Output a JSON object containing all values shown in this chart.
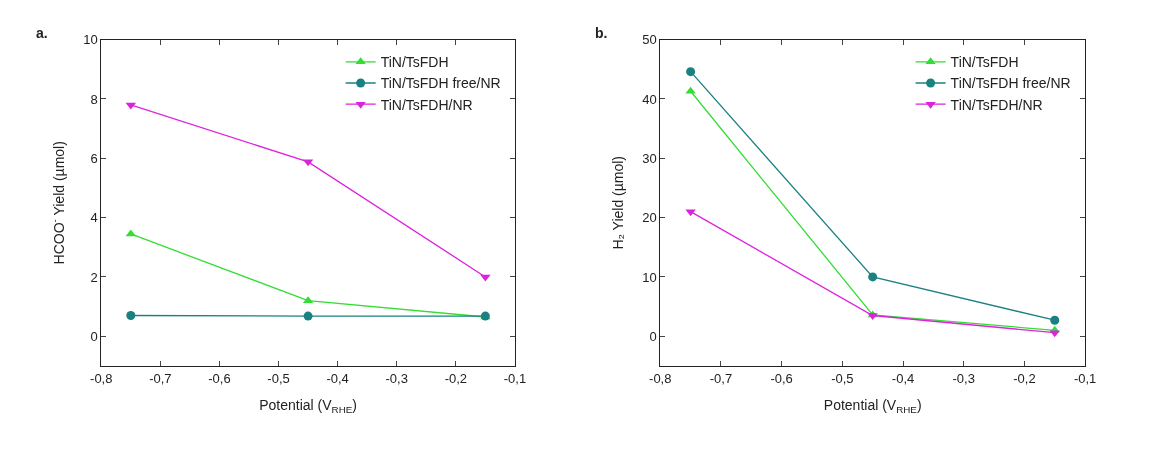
{
  "chart_data": [
    {
      "type": "line",
      "title": "a.",
      "xlabel": "Potential (V$_{RHE}$)",
      "ylabel": "HCOO$^{-}$ Yield (µmol)",
      "x": [
        -0.75,
        -0.45,
        -0.15
      ],
      "series": [
        {
          "name": "TiN/TsFDH",
          "color": "#33dd33",
          "marker": "triangle-up",
          "values": [
            3.45,
            1.2,
            0.65
          ]
        },
        {
          "name": "TiN/TsFDH free/NR",
          "color": "#1a8080",
          "marker": "circle",
          "values": [
            0.7,
            0.68,
            0.68
          ]
        },
        {
          "name": "TiN/TsFDH/NR",
          "color": "#dd22dd",
          "marker": "triangle-down",
          "values": [
            7.8,
            5.88,
            2.0
          ]
        }
      ],
      "xlim": [
        -0.8,
        -0.1
      ],
      "xticks": [
        {
          "value": -0.8,
          "label": "-0,8"
        },
        {
          "value": -0.7,
          "label": "-0,7"
        },
        {
          "value": -0.6,
          "label": "-0,6"
        },
        {
          "value": -0.5,
          "label": "-0,5"
        },
        {
          "value": -0.4,
          "label": "-0,4"
        },
        {
          "value": -0.3,
          "label": "-0,3"
        },
        {
          "value": -0.2,
          "label": "-0,2"
        },
        {
          "value": -0.1,
          "label": "-0,1"
        }
      ],
      "ylim": [
        -1,
        10
      ],
      "yticks": [
        0,
        2,
        4,
        6,
        8,
        10
      ],
      "legend": "top right",
      "line_style": "solid"
    },
    {
      "type": "line",
      "title": "b.",
      "xlabel": "Potential (V$_{RHE}$)",
      "ylabel": "H₂ Yield (µmol)",
      "x": [
        -0.75,
        -0.45,
        -0.15
      ],
      "series": [
        {
          "name": "TiN/TsFDH",
          "color": "#33dd33",
          "marker": "triangle-up",
          "values": [
            41.3,
            3.6,
            1.0
          ]
        },
        {
          "name": "TiN/TsFDH free/NR",
          "color": "#1a8080",
          "marker": "circle",
          "values": [
            44.6,
            10.0,
            2.7
          ]
        },
        {
          "name": "TiN/TsFDH/NR",
          "color": "#dd22dd",
          "marker": "triangle-down",
          "values": [
            21.0,
            3.5,
            0.6
          ]
        }
      ],
      "xlim": [
        -0.8,
        -0.1
      ],
      "xticks": [
        {
          "value": -0.8,
          "label": "-0,8"
        },
        {
          "value": -0.7,
          "label": "-0,7"
        },
        {
          "value": -0.6,
          "label": "-0,6"
        },
        {
          "value": -0.5,
          "label": "-0,5"
        },
        {
          "value": -0.4,
          "label": "-0,4"
        },
        {
          "value": -0.3,
          "label": "-0,3"
        },
        {
          "value": -0.2,
          "label": "-0,2"
        },
        {
          "value": -0.1,
          "label": "-0,1"
        }
      ],
      "ylim": [
        -5,
        50
      ],
      "yticks": [
        0,
        10,
        20,
        30,
        40,
        50
      ],
      "legend": "top right",
      "line_style": "solid"
    }
  ]
}
